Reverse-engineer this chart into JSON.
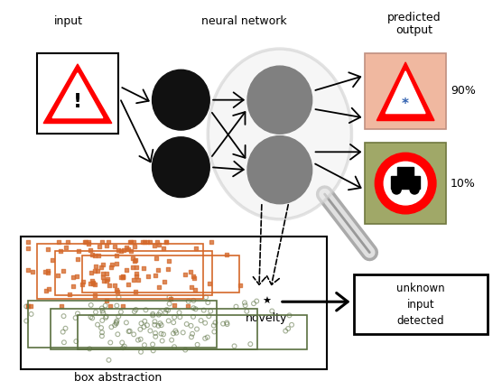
{
  "label_input": "input",
  "label_nn": "neural network",
  "label_predicted_1": "predicted",
  "label_predicted_2": "output",
  "label_90": "90%",
  "label_10": "10%",
  "label_novelty": "novelty",
  "label_unknown": "unknown\ninput\ndetected",
  "caption": "box abstraction",
  "bg_color": "#ffffff",
  "node_hidden_color": "#111111",
  "node_output_color": "#808080",
  "box_orange": "#d4682a",
  "box_green": "#5a7040",
  "scatter_orange": "#d4682a",
  "scatter_green": "#5a7040",
  "sign1_bg": "#f0b8a0",
  "sign2_bg": "#a0a868",
  "sign1_edge": "#c09080",
  "sign2_edge": "#707840",
  "magnifier_edge": "#cccccc",
  "magnifier_face": "#f0f0f0",
  "handle_outer": "#aaaaaa",
  "handle_inner": "#e0e0e0"
}
